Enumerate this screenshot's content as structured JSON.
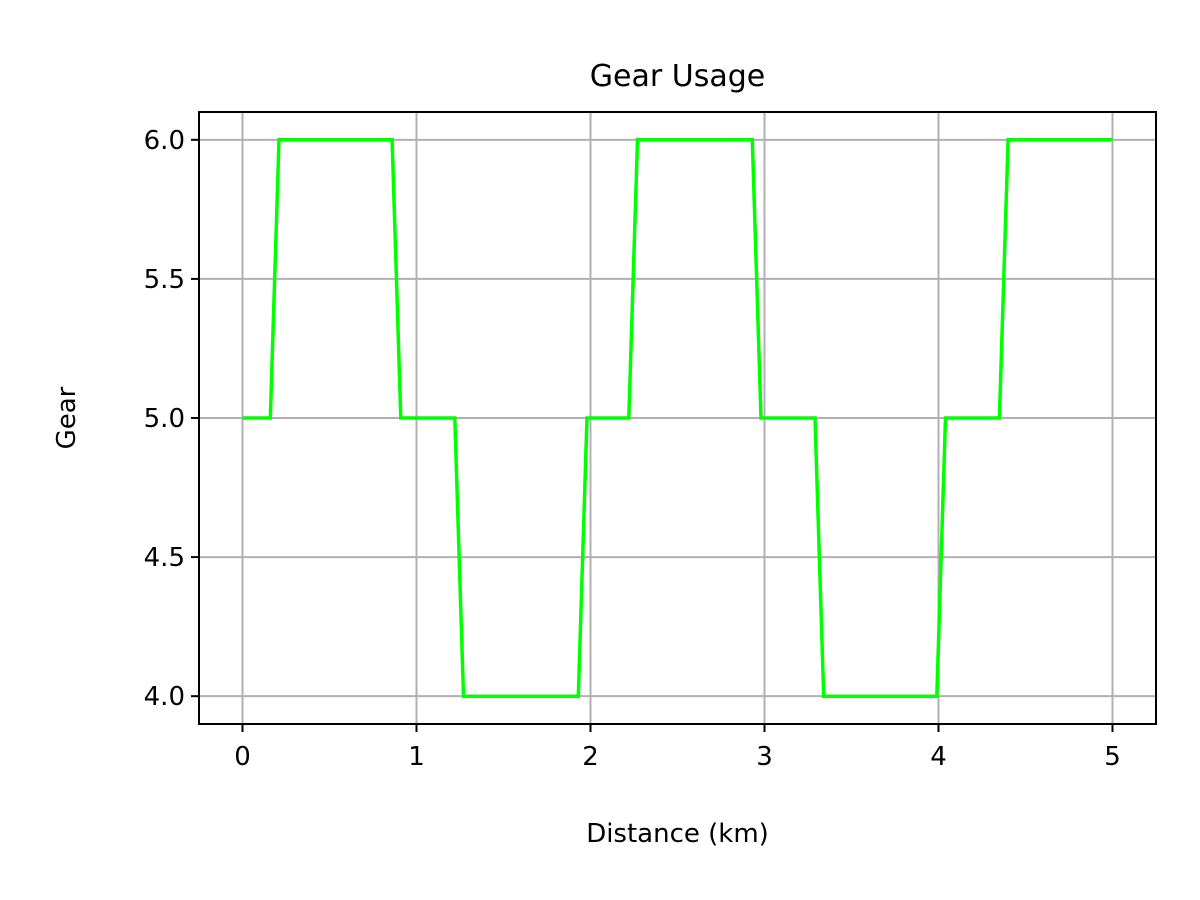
{
  "chart_data": {
    "type": "line",
    "title": "Gear Usage",
    "xlabel": "Distance (km)",
    "ylabel": "Gear",
    "xlim": [
      -0.25,
      5.25
    ],
    "ylim": [
      3.9,
      6.1
    ],
    "xticks": [
      0,
      1,
      2,
      3,
      4,
      5
    ],
    "xtick_labels": [
      "0",
      "1",
      "2",
      "3",
      "4",
      "5"
    ],
    "yticks": [
      4.0,
      4.5,
      5.0,
      5.5,
      6.0
    ],
    "ytick_labels": [
      "4.0",
      "4.5",
      "5.0",
      "5.5",
      "6.0"
    ],
    "grid": true,
    "legend": false,
    "series": [
      {
        "color": "#00ff00",
        "x": [
          0.0,
          0.16,
          0.21,
          0.86,
          0.91,
          1.22,
          1.27,
          1.93,
          1.98,
          2.22,
          2.27,
          2.93,
          2.98,
          3.29,
          3.34,
          3.99,
          4.04,
          4.35,
          4.4,
          5.0
        ],
        "y": [
          5,
          5,
          6,
          6,
          5,
          5,
          4,
          4,
          5,
          5,
          6,
          6,
          5,
          5,
          4,
          4,
          5,
          5,
          6,
          6
        ]
      }
    ]
  }
}
